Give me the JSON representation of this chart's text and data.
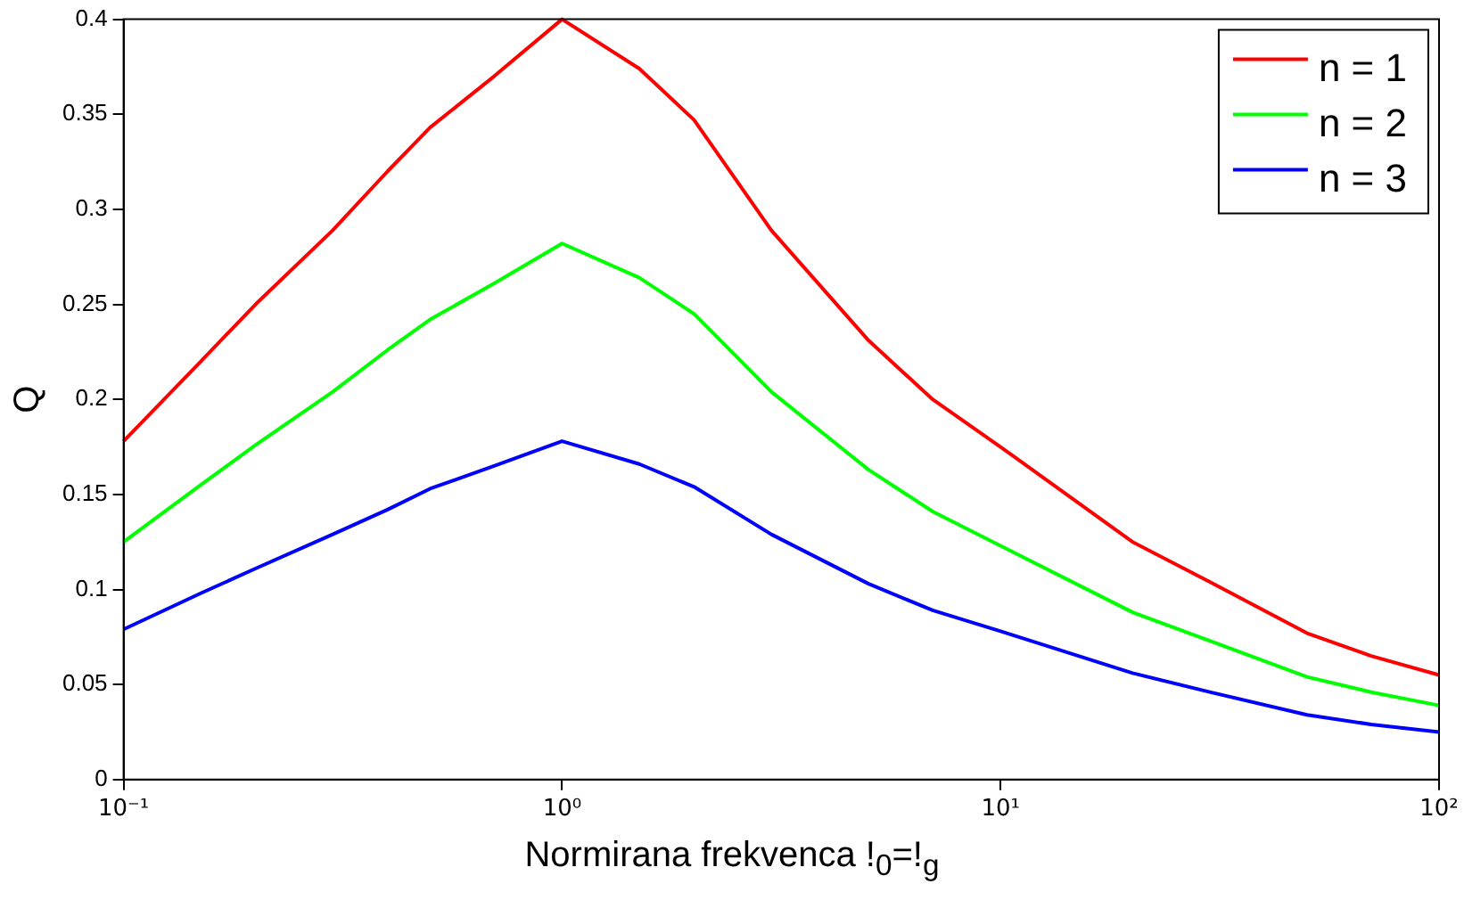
{
  "chart_data": {
    "type": "line",
    "xlabel": "Normirana frekvenca !$_{0}$=!$_{g}$",
    "ylabel": "Q",
    "x": [
      0.1,
      0.15,
      0.2,
      0.3,
      0.4,
      0.5,
      0.7,
      1,
      1.5,
      2,
      3,
      5,
      7,
      10,
      20,
      30,
      50,
      70,
      100
    ],
    "series": [
      {
        "name": "n = 1",
        "color": "#ff0000",
        "values": [
          0.178,
          0.22,
          0.25,
          0.289,
          0.32,
          0.343,
          0.37,
          0.4,
          0.374,
          0.347,
          0.289,
          0.231,
          0.2,
          0.175,
          0.125,
          0.104,
          0.077,
          0.065,
          0.055
        ]
      },
      {
        "name": "n = 2",
        "color": "#00ff00",
        "values": [
          0.125,
          0.155,
          0.176,
          0.204,
          0.226,
          0.242,
          0.261,
          0.282,
          0.264,
          0.245,
          0.204,
          0.163,
          0.141,
          0.123,
          0.088,
          0.073,
          0.054,
          0.046,
          0.039
        ]
      },
      {
        "name": "n = 3",
        "color": "#0000ff",
        "values": [
          0.079,
          0.098,
          0.111,
          0.129,
          0.142,
          0.153,
          0.165,
          0.178,
          0.166,
          0.154,
          0.129,
          0.103,
          0.089,
          0.078,
          0.056,
          0.046,
          0.034,
          0.029,
          0.025
        ]
      }
    ],
    "log": "x",
    "xlim": [
      0.1,
      100
    ],
    "ylim": [
      0,
      0.4
    ],
    "xticks": [
      {
        "value": 0.1,
        "label": "10⁻¹"
      },
      {
        "value": 1,
        "label": "10⁰"
      },
      {
        "value": 10,
        "label": "10¹"
      },
      {
        "value": 100,
        "label": "10²"
      }
    ],
    "yticks": [
      0,
      0.05,
      0.1,
      0.15,
      0.2,
      0.25,
      0.3,
      0.35,
      0.4
    ],
    "grid": false,
    "legend": "top right",
    "marker": "none",
    "line_style": "solid"
  }
}
